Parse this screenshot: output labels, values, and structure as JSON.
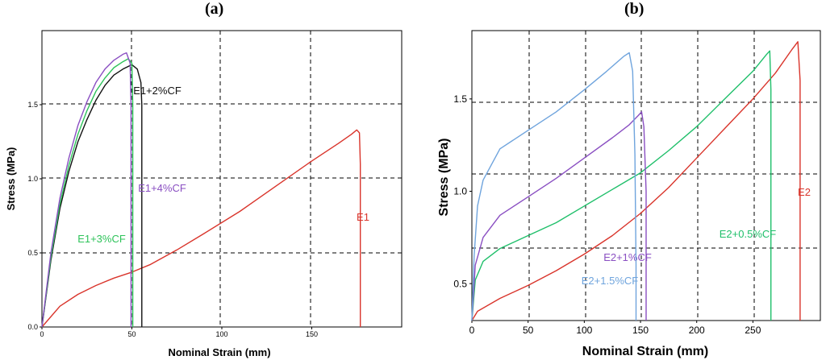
{
  "panels": [
    {
      "label": "(a)"
    },
    {
      "label": "(b)"
    }
  ],
  "chart_data": [
    {
      "type": "line",
      "panel": "(a)",
      "title": "",
      "xlabel": "Nominal Strain (mm)",
      "ylabel": "Stress (MPa)",
      "xlim": [
        0,
        200
      ],
      "ylim": [
        0,
        2.0
      ],
      "xticks": [
        0,
        50,
        100,
        150
      ],
      "yticks": [
        0.0,
        0.5,
        1.0,
        1.5
      ],
      "xtick_labels": [
        "0",
        "50",
        "100",
        "150"
      ],
      "ytick_labels": [
        "0.0",
        "0.5",
        "1.0",
        "1.5"
      ],
      "grid": "dashed at ticks",
      "series": [
        {
          "name": "E1",
          "label": "E1",
          "color": "#d9342b",
          "points": [
            [
              0,
              0
            ],
            [
              10,
              0.14
            ],
            [
              20,
              0.22
            ],
            [
              30,
              0.28
            ],
            [
              40,
              0.33
            ],
            [
              50,
              0.37
            ],
            [
              60,
              0.42
            ],
            [
              75,
              0.52
            ],
            [
              90,
              0.63
            ],
            [
              110,
              0.78
            ],
            [
              130,
              0.95
            ],
            [
              150,
              1.12
            ],
            [
              165,
              1.24
            ],
            [
              172,
              1.3
            ],
            [
              175,
              1.33
            ],
            [
              176.5,
              1.31
            ],
            [
              177,
              1.1
            ],
            [
              177,
              0.5
            ],
            [
              177,
              0
            ]
          ]
        },
        {
          "name": "E1+2%CF",
          "label": "E1+2%CF",
          "color": "#111111",
          "points": [
            [
              0,
              0
            ],
            [
              5,
              0.45
            ],
            [
              10,
              0.8
            ],
            [
              15,
              1.05
            ],
            [
              20,
              1.25
            ],
            [
              25,
              1.4
            ],
            [
              30,
              1.53
            ],
            [
              35,
              1.63
            ],
            [
              40,
              1.7
            ],
            [
              45,
              1.74
            ],
            [
              50,
              1.77
            ],
            [
              53,
              1.74
            ],
            [
              55,
              1.65
            ],
            [
              55.5,
              1.5
            ],
            [
              55.5,
              1.0
            ],
            [
              55.5,
              0
            ]
          ]
        },
        {
          "name": "E1+3%CF",
          "label": "E1+3%CF",
          "color": "#2ec35a",
          "points": [
            [
              0,
              0
            ],
            [
              5,
              0.47
            ],
            [
              10,
              0.83
            ],
            [
              15,
              1.09
            ],
            [
              20,
              1.3
            ],
            [
              25,
              1.46
            ],
            [
              30,
              1.59
            ],
            [
              35,
              1.68
            ],
            [
              40,
              1.75
            ],
            [
              45,
              1.79
            ],
            [
              48,
              1.81
            ],
            [
              50,
              1.78
            ],
            [
              50.5,
              1.5
            ],
            [
              50.5,
              1.0
            ],
            [
              50.5,
              0
            ]
          ]
        },
        {
          "name": "E1+4%CF",
          "label": "E1+4%CF",
          "color": "#8a4fc2",
          "points": [
            [
              0,
              0
            ],
            [
              5,
              0.5
            ],
            [
              10,
              0.87
            ],
            [
              15,
              1.14
            ],
            [
              20,
              1.36
            ],
            [
              25,
              1.52
            ],
            [
              30,
              1.65
            ],
            [
              35,
              1.74
            ],
            [
              40,
              1.8
            ],
            [
              45,
              1.84
            ],
            [
              47,
              1.85
            ],
            [
              49,
              1.78
            ],
            [
              49.5,
              1.5
            ],
            [
              49.5,
              1.0
            ],
            [
              49.5,
              0
            ]
          ]
        }
      ]
    },
    {
      "type": "line",
      "panel": "(b)",
      "title": "",
      "xlabel": "Nominal Strain (mm)",
      "ylabel": "Stress (MPa)",
      "xlim": [
        0,
        310
      ],
      "ylim": [
        0.3,
        1.87
      ],
      "xticks": [
        0,
        50,
        100,
        150,
        200,
        250
      ],
      "yticks": [
        0.5,
        1.0,
        1.5
      ],
      "xtick_labels": [
        "0",
        "50",
        "100",
        "150",
        "200",
        "250"
      ],
      "ytick_labels": [
        "0.5",
        "1.0",
        "1.5"
      ],
      "grid": "dashed",
      "series": [
        {
          "name": "E2",
          "label": "E2",
          "color": "#d9342b",
          "points": [
            [
              0,
              0.3
            ],
            [
              5,
              0.35
            ],
            [
              25,
              0.42
            ],
            [
              50,
              0.49
            ],
            [
              75,
              0.57
            ],
            [
              100,
              0.66
            ],
            [
              125,
              0.76
            ],
            [
              150,
              0.88
            ],
            [
              175,
              1.02
            ],
            [
              200,
              1.18
            ],
            [
              225,
              1.34
            ],
            [
              250,
              1.5
            ],
            [
              270,
              1.64
            ],
            [
              285,
              1.77
            ],
            [
              290,
              1.81
            ],
            [
              292,
              1.6
            ],
            [
              292,
              1.0
            ],
            [
              292,
              0.3
            ]
          ]
        },
        {
          "name": "E2+0.5%CF",
          "label": "E2+0.5%CF",
          "color": "#1fbf6a",
          "points": [
            [
              0,
              0.3
            ],
            [
              3,
              0.52
            ],
            [
              10,
              0.62
            ],
            [
              25,
              0.69
            ],
            [
              50,
              0.76
            ],
            [
              75,
              0.83
            ],
            [
              100,
              0.92
            ],
            [
              125,
              1.01
            ],
            [
              150,
              1.1
            ],
            [
              175,
              1.22
            ],
            [
              200,
              1.35
            ],
            [
              225,
              1.5
            ],
            [
              250,
              1.65
            ],
            [
              262,
              1.74
            ],
            [
              265,
              1.76
            ],
            [
              266,
              1.55
            ],
            [
              266,
              0.9
            ],
            [
              266,
              0.3
            ]
          ]
        },
        {
          "name": "E2+1%CF",
          "label": "E2+1%CF",
          "color": "#8a4fc2",
          "points": [
            [
              0,
              0.3
            ],
            [
              3,
              0.6
            ],
            [
              10,
              0.75
            ],
            [
              25,
              0.87
            ],
            [
              50,
              0.97
            ],
            [
              75,
              1.07
            ],
            [
              100,
              1.18
            ],
            [
              125,
              1.29
            ],
            [
              140,
              1.36
            ],
            [
              148,
              1.41
            ],
            [
              151,
              1.43
            ],
            [
              153,
              1.35
            ],
            [
              155,
              1.0
            ],
            [
              155,
              0.6
            ],
            [
              155,
              0.3
            ]
          ]
        },
        {
          "name": "E2+1.5%CF",
          "label": "E2+1.5%CF",
          "color": "#6fa4dd",
          "points": [
            [
              0,
              0.3
            ],
            [
              2,
              0.65
            ],
            [
              5,
              0.92
            ],
            [
              10,
              1.06
            ],
            [
              25,
              1.23
            ],
            [
              50,
              1.33
            ],
            [
              75,
              1.43
            ],
            [
              100,
              1.55
            ],
            [
              120,
              1.65
            ],
            [
              135,
              1.73
            ],
            [
              140,
              1.75
            ],
            [
              143,
              1.65
            ],
            [
              145,
              1.2
            ],
            [
              146,
              0.6
            ],
            [
              146,
              0.3
            ]
          ]
        }
      ]
    }
  ]
}
